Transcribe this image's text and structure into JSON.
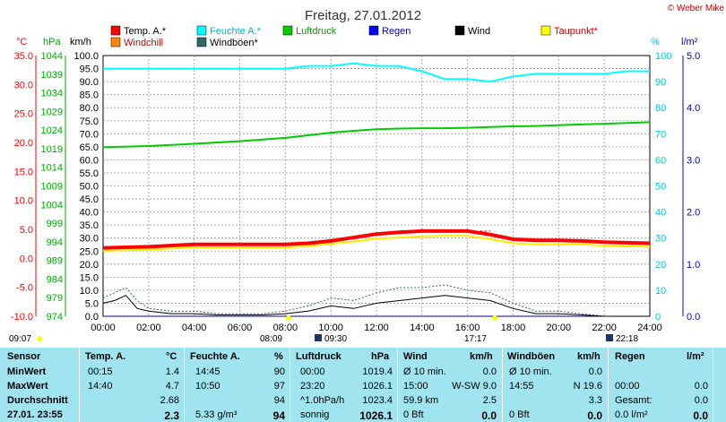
{
  "title": "Freitag, 27.01.2012",
  "credit": "© Weber Mike",
  "axes": {
    "temp_unit": "°C",
    "pressure_unit": "hPa",
    "wind_unit": "km/h",
    "humidity_unit": "%",
    "rain_unit": "l/m²"
  },
  "legend": [
    {
      "label": "Temp. A.*",
      "color": "#ff0000"
    },
    {
      "label": "Feuchte A.*",
      "color": "#00ffff"
    },
    {
      "label": "Luftdruck",
      "color": "#00cc00"
    },
    {
      "label": "Regen",
      "color": "#0000ff"
    },
    {
      "label": "Wind",
      "color": "#000000"
    },
    {
      "label": "Taupunkt*",
      "color": "#ffff00"
    },
    {
      "label": "Windchill",
      "color": "#ff8800"
    },
    {
      "label": "Windböen*",
      "color": "#336666"
    }
  ],
  "events": {
    "sunrise": "08:09",
    "moonrise": "09:30",
    "sunset": "17:17",
    "moonset": "22:18",
    "left_time": "09:07"
  },
  "chart_data": {
    "type": "line",
    "x_ticks": [
      "00:00",
      "02:00",
      "04:00",
      "06:00",
      "08:00",
      "10:00",
      "12:00",
      "14:00",
      "16:00",
      "18:00",
      "20:00",
      "22:00",
      "24:00"
    ],
    "y_speed_ticks": [
      "0.0",
      "5.0",
      "10.0",
      "15.0",
      "20.0",
      "25.0",
      "30.0",
      "35.0",
      "40.0",
      "45.0",
      "50.0",
      "55.0",
      "60.0",
      "65.0",
      "70.0",
      "75.0",
      "80.0",
      "85.0",
      "90.0",
      "95.0",
      "100.0"
    ],
    "y_temp_ticks": [
      "-10.0",
      "-5.0",
      "0.0",
      "5.0",
      "10.0",
      "15.0",
      "20.0",
      "25.0",
      "30.0",
      "35.0"
    ],
    "y_pressure_ticks": [
      "974",
      "979",
      "984",
      "989",
      "994",
      "999",
      "1004",
      "1009",
      "1014",
      "1019",
      "1024",
      "1029",
      "1034",
      "1039",
      "1044"
    ],
    "y_humidity_ticks": [
      "0",
      "10",
      "20",
      "30",
      "40",
      "50",
      "60",
      "70",
      "80",
      "90",
      "100"
    ],
    "y_rain_ticks": [
      "0.0",
      "1.0",
      "2.0",
      "3.0",
      "4.0",
      "5.0"
    ],
    "ylim_speed": [
      0,
      100
    ],
    "series": [
      {
        "name": "Temp. A.*",
        "unit": "°C",
        "color": "#ff0000",
        "x": [
          0,
          2,
          4,
          6,
          8,
          9,
          10,
          11,
          12,
          13,
          14,
          15,
          16,
          17,
          18,
          19,
          20,
          21,
          22,
          23,
          24
        ],
        "y": [
          1.8,
          2.0,
          2.4,
          2.4,
          2.4,
          2.6,
          3.0,
          3.6,
          4.2,
          4.5,
          4.7,
          4.7,
          4.7,
          4.1,
          3.3,
          3.1,
          3.1,
          3.0,
          2.8,
          2.7,
          2.6
        ]
      },
      {
        "name": "Feuchte A.*",
        "unit": "%",
        "color": "#00ffff",
        "x": [
          0,
          2,
          4,
          6,
          8,
          9,
          10,
          11,
          12,
          13,
          14,
          15,
          16,
          17,
          18,
          19,
          20,
          21,
          22,
          23,
          24
        ],
        "y": [
          95,
          95,
          95,
          95,
          95,
          96,
          96,
          97,
          96,
          96,
          94,
          91,
          91,
          90,
          92,
          93,
          93,
          93,
          93,
          94,
          94
        ]
      },
      {
        "name": "Luftdruck",
        "unit": "hPa",
        "color": "#00cc00",
        "x": [
          0,
          2,
          4,
          6,
          8,
          9,
          10,
          11,
          12,
          13,
          14,
          15,
          16,
          17,
          18,
          19,
          20,
          21,
          22,
          23,
          24
        ],
        "y": [
          1019.4,
          1019.7,
          1020.3,
          1021.0,
          1021.9,
          1022.6,
          1023.3,
          1023.8,
          1024.2,
          1024.4,
          1024.5,
          1024.5,
          1024.6,
          1024.8,
          1025.0,
          1025.1,
          1025.3,
          1025.5,
          1025.7,
          1025.9,
          1026.1
        ]
      },
      {
        "name": "Taupunkt*",
        "unit": "°C",
        "color": "#ffee00",
        "x": [
          0,
          2,
          4,
          6,
          8,
          9,
          10,
          11,
          12,
          13,
          14,
          15,
          16,
          17,
          18,
          19,
          20,
          21,
          22,
          23,
          24
        ],
        "y": [
          1.3,
          1.5,
          1.9,
          1.9,
          1.9,
          2.1,
          2.5,
          2.9,
          3.4,
          3.6,
          3.8,
          3.9,
          3.9,
          3.3,
          2.6,
          2.4,
          2.4,
          2.4,
          2.2,
          2.1,
          2.0
        ]
      },
      {
        "name": "Wind",
        "unit": "km/h",
        "color": "#000000",
        "x": [
          0,
          0.5,
          1,
          1.5,
          2,
          3,
          4,
          5,
          6,
          7,
          8,
          9,
          10,
          11,
          12,
          13,
          14,
          15,
          16,
          17,
          18,
          19,
          20,
          21,
          22,
          23,
          24
        ],
        "y": [
          5,
          6,
          8,
          3,
          2,
          1,
          1,
          0.5,
          0.5,
          0.5,
          1,
          2,
          4,
          3,
          5,
          6,
          7,
          8,
          7,
          6,
          3,
          1,
          1,
          0.5,
          0,
          0,
          0
        ]
      },
      {
        "name": "Windböen*",
        "unit": "km/h",
        "color": "#336666",
        "x": [
          0,
          0.5,
          1,
          1.5,
          2,
          3,
          4,
          5,
          6,
          7,
          8,
          9,
          10,
          11,
          12,
          13,
          14,
          15,
          16,
          17,
          18,
          19,
          20,
          21,
          22,
          23,
          24
        ],
        "y": [
          7,
          9,
          11,
          6,
          3,
          2,
          2,
          1,
          1,
          1,
          2,
          4,
          7,
          6,
          9,
          11,
          11,
          12,
          10,
          9,
          5,
          2,
          2,
          1,
          0,
          0,
          0
        ]
      },
      {
        "name": "Regen",
        "unit": "l/m²",
        "color": "#0000ff",
        "x": [
          0,
          24
        ],
        "y": [
          0.0,
          0.0
        ]
      }
    ]
  },
  "table": {
    "headers": [
      "Sensor",
      "Temp. A.",
      "°C",
      "Feuchte A.",
      "%",
      "Luftdruck",
      "hPa",
      "Wind",
      "km/h",
      "Windböen",
      "km/h",
      "Regen",
      "l/m²"
    ],
    "rows": [
      {
        "label": "MinWert",
        "temp_time": "00:15",
        "temp": "1.4",
        "hum_time": "14:45",
        "hum": "90",
        "press_time": "00:00",
        "press": "1019.4",
        "wind_lbl": "Ø 10 min.",
        "wind": "0.0",
        "gust_lbl": "Ø 10 min.",
        "gust": "0.0",
        "rain_lbl": "",
        "rain": ""
      },
      {
        "label": "MaxWert",
        "temp_time": "14:40",
        "temp": "4.7",
        "hum_time": "10:50",
        "hum": "97",
        "press_time": "23:20",
        "press": "1026.1",
        "wind_lbl": "15:00",
        "wind": "W-SW 9.0",
        "gust_lbl": "14:55",
        "gust": "N 19.6",
        "rain_lbl": "00:00",
        "rain": "0.0"
      },
      {
        "label": "Durchschnitt",
        "temp_time": "",
        "temp": "2.68",
        "hum_time": "",
        "hum": "94",
        "press_time": "^1.0hPa/h",
        "press": "1023.4",
        "wind_lbl": "59.9 km",
        "wind": "2.5",
        "gust_lbl": "",
        "gust": "3.3",
        "rain_lbl": "Gesamt:",
        "rain": "0.0"
      },
      {
        "label": "27.01. 23:55",
        "temp_time": "",
        "temp": "2.3",
        "hum_time": "5.33 g/m³",
        "hum": "94",
        "press_time": "sonnig",
        "press": "1026.1",
        "wind_lbl": "0 Bft",
        "wind": "0.0",
        "gust_lbl": "0 Bft",
        "gust": "0.0",
        "rain_lbl": "0.0 l/m²",
        "rain": "0.0"
      }
    ]
  }
}
